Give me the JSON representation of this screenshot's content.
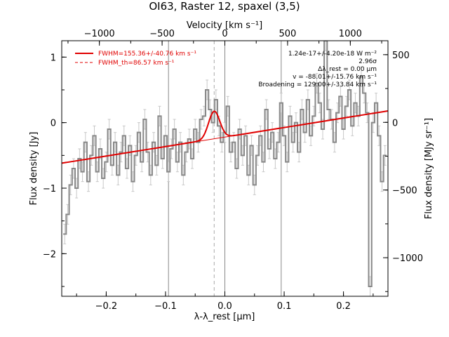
{
  "chart_data": {
    "type": "line",
    "title": "OI63, Raster 12, spaxel (3,5)",
    "xlabel": "λ-λ_rest [μm]",
    "ylabel": "Flux density [Jy]",
    "top_xlabel": "Velocity [km s⁻¹]",
    "right_ylabel": "Flux density [MJy sr⁻¹]",
    "xlim": [
      -0.275,
      0.275
    ],
    "ylim": [
      -2.65,
      1.25
    ],
    "top_xlim": [
      -1300,
      1300
    ],
    "right_ylim": [
      -1285,
      603
    ],
    "x_ticks": [
      -0.2,
      -0.1,
      0.0,
      0.1,
      0.2
    ],
    "x_tick_labels": [
      "−0.2",
      "−0.1",
      "0.0",
      "0.1",
      "0.2"
    ],
    "y_ticks": [
      -2,
      -1,
      0,
      1
    ],
    "y_tick_labels": [
      "−2",
      "−1",
      "0",
      "1"
    ],
    "top_ticks": [
      -1000,
      -500,
      0,
      500,
      1000
    ],
    "top_tick_labels": [
      "−1000",
      "−500",
      "0",
      "500",
      "1000"
    ],
    "right_ticks": [
      -1000,
      -500,
      0,
      500
    ],
    "right_tick_labels": [
      "−1000",
      "−500",
      "0",
      "500"
    ],
    "legend": {
      "position": "top-left",
      "entries": [
        {
          "label": "FWHM=155.36+/-40.76 km s⁻¹",
          "style": "solid"
        },
        {
          "label": "FWHM_th=86.57 km s⁻¹",
          "style": "dashed"
        }
      ]
    },
    "annotations": [
      "1.24e-17+/-4.20e-18 W m⁻²",
      "2.96σ",
      "Δλ_rest = 0.00 μm",
      "v = -88.01+/-15.76 km s⁻¹",
      "Broadening = 129.00+/-33.84 km s⁻¹"
    ],
    "vertical_lines": [
      {
        "x": -0.095,
        "style": "solid",
        "color": "#888888"
      },
      {
        "x": 0.0,
        "style": "solid",
        "color": "#888888"
      },
      {
        "x": 0.095,
        "style": "solid",
        "color": "#888888"
      },
      {
        "x": -0.018,
        "style": "dashed",
        "color": "#aaaaaa"
      }
    ],
    "spectrum": {
      "name": "",
      "x": [
        -0.27,
        -0.265,
        -0.26,
        -0.255,
        -0.25,
        -0.245,
        -0.24,
        -0.235,
        -0.23,
        -0.225,
        -0.22,
        -0.215,
        -0.21,
        -0.205,
        -0.2,
        -0.195,
        -0.19,
        -0.185,
        -0.18,
        -0.175,
        -0.17,
        -0.165,
        -0.16,
        -0.155,
        -0.15,
        -0.145,
        -0.14,
        -0.135,
        -0.13,
        -0.125,
        -0.12,
        -0.115,
        -0.11,
        -0.105,
        -0.1,
        -0.095,
        -0.09,
        -0.085,
        -0.08,
        -0.075,
        -0.07,
        -0.065,
        -0.06,
        -0.055,
        -0.05,
        -0.045,
        -0.04,
        -0.035,
        -0.03,
        -0.025,
        -0.02,
        -0.015,
        -0.01,
        -0.005,
        0.0,
        0.005,
        0.01,
        0.015,
        0.02,
        0.025,
        0.03,
        0.035,
        0.04,
        0.045,
        0.05,
        0.055,
        0.06,
        0.065,
        0.07,
        0.075,
        0.08,
        0.085,
        0.09,
        0.095,
        0.1,
        0.105,
        0.11,
        0.115,
        0.12,
        0.125,
        0.13,
        0.135,
        0.14,
        0.145,
        0.15,
        0.155,
        0.16,
        0.165,
        0.17,
        0.175,
        0.18,
        0.185,
        0.19,
        0.195,
        0.2,
        0.205,
        0.21,
        0.215,
        0.22,
        0.225,
        0.23,
        0.235,
        0.24,
        0.245,
        0.25,
        0.255,
        0.26,
        0.265,
        0.27
      ],
      "y": [
        -1.7,
        -1.4,
        -0.95,
        -0.7,
        -1.0,
        -0.55,
        -0.75,
        -0.3,
        -0.9,
        -0.5,
        -0.2,
        -0.75,
        -0.4,
        -0.85,
        -0.6,
        -0.1,
        -0.65,
        -0.3,
        -0.8,
        -0.45,
        -0.2,
        -0.7,
        -0.35,
        -0.9,
        -0.5,
        -0.15,
        -0.6,
        0.05,
        -0.45,
        -0.8,
        -0.3,
        -0.65,
        0.1,
        -0.55,
        -0.2,
        -0.75,
        -0.4,
        -0.1,
        -0.6,
        -0.3,
        -0.8,
        -0.45,
        -0.25,
        -0.55,
        -0.1,
        -0.3,
        0.05,
        0.1,
        0.5,
        0.2,
        0.0,
        0.35,
        -0.05,
        -0.3,
        -0.15,
        0.25,
        -0.45,
        -0.3,
        -0.7,
        -0.1,
        -0.5,
        -0.2,
        -0.8,
        -0.35,
        -0.95,
        -0.5,
        -0.2,
        -0.6,
        0.2,
        -0.4,
        -0.15,
        -0.55,
        -0.3,
        0.3,
        -0.2,
        -0.6,
        0.1,
        -0.3,
        0.0,
        -0.45,
        0.2,
        -0.15,
        0.35,
        -0.2,
        0.1,
        0.6,
        0.3,
        -0.1,
        1.25,
        0.2,
        0.05,
        -0.3,
        0.15,
        0.4,
        -0.1,
        0.25,
        0.5,
        -0.05,
        0.3,
        0.1,
        0.7,
        0.45,
        0.15,
        -2.5,
        0.0,
        0.3,
        -0.2,
        -0.9,
        -0.5
      ],
      "err": 0.15,
      "color": "#888888"
    },
    "fit": {
      "name": "",
      "continuum": {
        "slope": 1.45,
        "intercept": -0.22
      },
      "gaussian": {
        "amplitude": 0.42,
        "center": -0.018,
        "sigma": 0.0095
      },
      "color": "#e00000"
    }
  }
}
